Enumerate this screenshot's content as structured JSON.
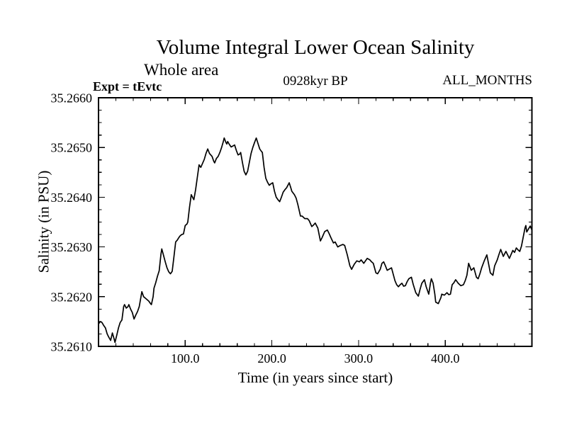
{
  "page": {
    "background": "#ffffff",
    "foreground": "#000000"
  },
  "chart_data": {
    "type": "line",
    "title": "Volume Integral Lower Ocean Salinity",
    "subtitle": "Whole area",
    "annotations": {
      "left": "Expt = tEvtc",
      "center": "0928kyr BP",
      "right": "ALL_MONTHS"
    },
    "xlabel": "Time (in years since start)",
    "ylabel": "Salinity (in PSU)",
    "xlim": [
      0,
      500
    ],
    "ylim": [
      35.261,
      35.266
    ],
    "grid": false,
    "legend": false,
    "line_color": "#000000",
    "x_minor_step": 20,
    "y_minor_step": 0.00025,
    "x_ticks": [
      {
        "value": 100,
        "label": "100.0"
      },
      {
        "value": 200,
        "label": "200.0"
      },
      {
        "value": 300,
        "label": "300.0"
      },
      {
        "value": 400,
        "label": "400.0"
      }
    ],
    "y_ticks": [
      {
        "value": 35.261,
        "label": "35.2610"
      },
      {
        "value": 35.262,
        "label": "35.2620"
      },
      {
        "value": 35.263,
        "label": "35.2630"
      },
      {
        "value": 35.264,
        "label": "35.2640"
      },
      {
        "value": 35.265,
        "label": "35.2650"
      },
      {
        "value": 35.266,
        "label": "35.2660"
      }
    ],
    "series": [
      {
        "name": "volume-integral-lower-ocean-salinity",
        "x": [
          0,
          2,
          4,
          6,
          8,
          10,
          12,
          14,
          16,
          18,
          19,
          21,
          23,
          25,
          27,
          29,
          30,
          32,
          34,
          35,
          37,
          39,
          41,
          43,
          45,
          47,
          49,
          50,
          52,
          54,
          56,
          58,
          60,
          61,
          63,
          64,
          66,
          68,
          70,
          72,
          73,
          75,
          77,
          79,
          81,
          83,
          85,
          87,
          89,
          91,
          92,
          94,
          96,
          98,
          100,
          102,
          103,
          105,
          107,
          109,
          110,
          112,
          114,
          116,
          118,
          120,
          122,
          124,
          126,
          128,
          129,
          131,
          133,
          134,
          136,
          138,
          140,
          142,
          144,
          145,
          147,
          148,
          149,
          151,
          153,
          155,
          157,
          159,
          161,
          163,
          164,
          166,
          168,
          170,
          172,
          174,
          176,
          178,
          180,
          182,
          184,
          186,
          188,
          189,
          191,
          193,
          195,
          197,
          199,
          201,
          203,
          205,
          207,
          209,
          211,
          213,
          215,
          217,
          220,
          222,
          223,
          226,
          228,
          230,
          233,
          235,
          238,
          241,
          243,
          246,
          248,
          250,
          253,
          256,
          258,
          261,
          264,
          266,
          268,
          271,
          273,
          276,
          279,
          282,
          284,
          287,
          290,
          292,
          295,
          298,
          301,
          303,
          306,
          308,
          310,
          313,
          315,
          317,
          320,
          322,
          325,
          327,
          329,
          331,
          333,
          336,
          338,
          340,
          342,
          344,
          346,
          348,
          350,
          352,
          354,
          356,
          358,
          361,
          363,
          366,
          369,
          371,
          373,
          376,
          378,
          381,
          383,
          384,
          386,
          388,
          389,
          392,
          395,
          396,
          399,
          402,
          404,
          406,
          408,
          410,
          412,
          415,
          418,
          421,
          423,
          425,
          427,
          430,
          433,
          436,
          438,
          440,
          442,
          445,
          448,
          450,
          452,
          455,
          457,
          460,
          462,
          464,
          467,
          470,
          472,
          474,
          476,
          478,
          480,
          482,
          484,
          486,
          488,
          490,
          492,
          493,
          494,
          496,
          498,
          500
        ],
        "y": [
          35.26145,
          35.2615,
          35.26148,
          35.26142,
          35.26137,
          35.26125,
          35.26118,
          35.26112,
          35.26127,
          35.26115,
          35.26108,
          35.26122,
          35.26137,
          35.26148,
          35.26153,
          35.2618,
          35.26184,
          35.26177,
          35.2618,
          35.26184,
          35.26175,
          35.26168,
          35.26155,
          35.26163,
          35.2617,
          35.2618,
          35.262,
          35.2621,
          35.262,
          35.26197,
          35.26194,
          35.26191,
          35.26186,
          35.26184,
          35.262,
          35.26217,
          35.26228,
          35.26241,
          35.26252,
          35.26285,
          35.26296,
          35.26283,
          35.2627,
          35.26258,
          35.2625,
          35.26246,
          35.26251,
          35.2628,
          35.2631,
          35.26314,
          35.26317,
          35.26322,
          35.26325,
          35.26326,
          35.26343,
          35.26346,
          35.2635,
          35.2638,
          35.26405,
          35.26398,
          35.26395,
          35.26415,
          35.2644,
          35.26465,
          35.2646,
          35.26468,
          35.26476,
          35.26488,
          35.26497,
          35.26488,
          35.26486,
          35.26482,
          35.26472,
          35.26469,
          35.26478,
          35.26482,
          35.2649,
          35.265,
          35.26512,
          35.26519,
          35.2651,
          35.26507,
          35.26512,
          35.26506,
          35.26501,
          35.26503,
          35.26505,
          35.26494,
          35.26485,
          35.26487,
          35.2649,
          35.2647,
          35.26452,
          35.26445,
          35.26452,
          35.2647,
          35.26488,
          35.265,
          35.2651,
          35.26519,
          35.26508,
          35.26497,
          35.26492,
          35.2649,
          35.2646,
          35.26438,
          35.2643,
          35.26424,
          35.26427,
          35.26429,
          35.26412,
          35.264,
          35.26395,
          35.26391,
          35.264,
          35.2641,
          35.26415,
          35.26419,
          35.26429,
          35.26418,
          35.26412,
          35.26405,
          35.26398,
          35.26385,
          35.26362,
          35.26362,
          35.26357,
          35.26357,
          35.26353,
          35.26341,
          35.26344,
          35.26348,
          35.26338,
          35.26312,
          35.26319,
          35.26331,
          35.26334,
          35.26327,
          35.26319,
          35.26308,
          35.2631,
          35.263,
          35.26303,
          35.26305,
          35.26303,
          35.26284,
          35.26262,
          35.26255,
          35.26265,
          35.26272,
          35.2627,
          35.26274,
          35.26267,
          35.26272,
          35.26277,
          35.26274,
          35.2627,
          35.26267,
          35.26248,
          35.26246,
          35.26255,
          35.26267,
          35.2627,
          35.26262,
          35.26253,
          35.26256,
          35.26258,
          35.26245,
          35.26232,
          35.26224,
          35.2622,
          35.26224,
          35.26227,
          35.26221,
          35.26222,
          35.2623,
          35.26236,
          35.26239,
          35.26225,
          35.26208,
          35.26201,
          35.26215,
          35.26227,
          35.26234,
          35.2622,
          35.26205,
          35.26228,
          35.26236,
          35.26227,
          35.26205,
          35.26189,
          35.26186,
          35.26198,
          35.26205,
          35.26203,
          35.26208,
          35.26204,
          35.26205,
          35.26224,
          35.26228,
          35.26234,
          35.26227,
          35.26222,
          35.26224,
          35.26232,
          35.26243,
          35.26267,
          35.26253,
          35.26258,
          35.26239,
          35.26236,
          35.26246,
          35.26258,
          35.26272,
          35.26284,
          35.26266,
          35.26248,
          35.26243,
          35.26262,
          35.26274,
          35.26285,
          35.26295,
          35.26281,
          35.26291,
          35.26284,
          35.26277,
          35.26285,
          35.26293,
          35.26289,
          35.26298,
          35.26294,
          35.26291,
          35.26302,
          35.2632,
          35.26338,
          35.26343,
          35.2633,
          35.26336,
          35.26342,
          35.26334
        ]
      }
    ]
  }
}
